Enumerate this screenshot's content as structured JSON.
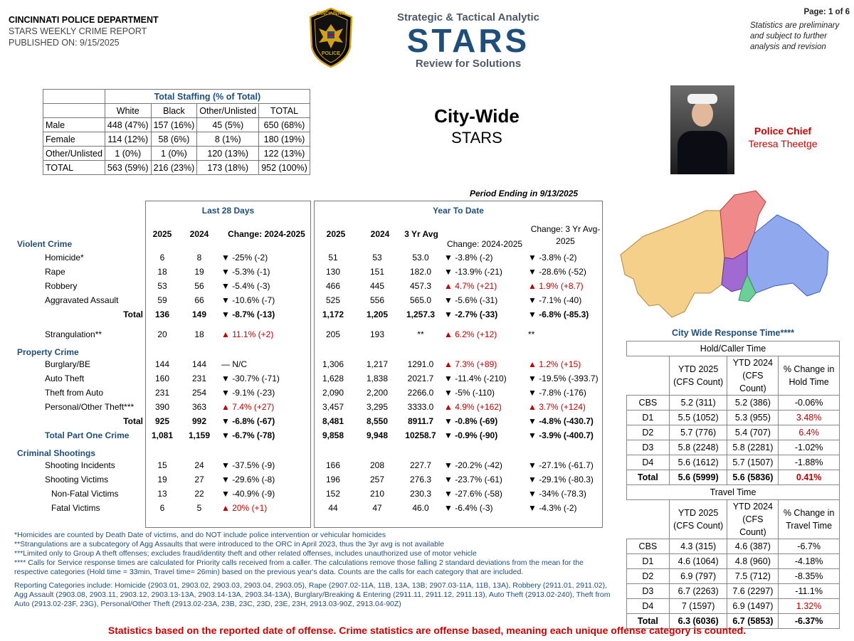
{
  "header": {
    "department": "CINCINNATI POLICE DEPARTMENT",
    "report": "STARS WEEKLY CRIME REPORT",
    "published": "PUBLISHED ON: 9/15/2025",
    "badge_text_top": "CINCINNATI",
    "badge_text_bottom": "POLICE",
    "stars_line1": "Strategic & Tactical Analytic",
    "stars_word": "STARS",
    "stars_line3": "Review for Solutions",
    "page": "Page: 1 of 6",
    "note": "Statistics are preliminary and subject to further analysis and revision"
  },
  "title": {
    "line1": "City-Wide",
    "line2": "STARS"
  },
  "chief": {
    "title": "Police Chief",
    "name": "Teresa Theetge"
  },
  "staffing": {
    "title": "Total Staffing (% of Total)",
    "columns": [
      "White",
      "Black",
      "Other/Unlisted",
      "TOTAL"
    ],
    "rows": [
      {
        "label": "Male",
        "cells": [
          "448 (47%)",
          "157 (16%)",
          "45 (5%)",
          "650 (68%)"
        ]
      },
      {
        "label": "Female",
        "cells": [
          "114 (12%)",
          "58 (6%)",
          "8 (1%)",
          "180 (19%)"
        ]
      },
      {
        "label": "Other/Unlisted",
        "cells": [
          "1 (0%)",
          "1 (0%)",
          "120 (13%)",
          "122 (13%)"
        ]
      },
      {
        "label": "TOTAL",
        "cells": [
          "563 (59%)",
          "216 (23%)",
          "173 (18%)",
          "952 (100%)"
        ]
      }
    ]
  },
  "period": "Period Ending in 9/13/2025",
  "crime": {
    "last28": "Last 28 Days",
    "ytd": "Year To Date",
    "cols_l28": [
      "2025",
      "2024",
      "Change: 2024-2025"
    ],
    "cols_ytd": [
      "2025",
      "2024",
      "3 Yr Avg",
      "Change: 2024-2025",
      "Change: 3 Yr Avg-2025"
    ],
    "violent_label": "Violent Crime",
    "violent": [
      {
        "label": "Homicide*",
        "a": "6",
        "b": "8",
        "c": "▼ -25% (-2)",
        "d": "51",
        "e": "53",
        "f": "53.0",
        "g": "▼ -3.8% (-2)",
        "h": "▼ -3.8% (-2)"
      },
      {
        "label": "Rape",
        "a": "18",
        "b": "19",
        "c": "▼ -5.3% (-1)",
        "d": "130",
        "e": "151",
        "f": "182.0",
        "g": "▼ -13.9% (-21)",
        "h": "▼ -28.6% (-52)"
      },
      {
        "label": "Robbery",
        "a": "53",
        "b": "56",
        "c": "▼ -5.4% (-3)",
        "d": "466",
        "e": "445",
        "f": "457.3",
        "g": "▲ 4.7% (+21)",
        "h": "▲ 1.9% (+8.7)"
      },
      {
        "label": "Aggravated Assault",
        "a": "59",
        "b": "66",
        "c": "▼ -10.6% (-7)",
        "d": "525",
        "e": "556",
        "f": "565.0",
        "g": "▼ -5.6% (-31)",
        "h": "▼ -7.1% (-40)"
      }
    ],
    "violent_total": {
      "label": "Total",
      "a": "136",
      "b": "149",
      "c": "▼ -8.7% (-13)",
      "d": "1,172",
      "e": "1,205",
      "f": "1,257.3",
      "g": "▼ -2.7% (-33)",
      "h": "▼ -6.8% (-85.3)"
    },
    "strangulation": {
      "label": "Strangulation**",
      "a": "20",
      "b": "18",
      "c": "▲ 11.1% (+2)",
      "d": "205",
      "e": "193",
      "f": "**",
      "g": "▲ 6.2% (+12)",
      "h": "**"
    },
    "property_label": "Property Crime",
    "property": [
      {
        "label": "Burglary/BE",
        "a": "144",
        "b": "144",
        "c": "— N/C",
        "d": "1,306",
        "e": "1,217",
        "f": "1291.0",
        "g": "▲ 7.3% (+89)",
        "h": "▲ 1.2% (+15)"
      },
      {
        "label": "Auto Theft",
        "a": "160",
        "b": "231",
        "c": "▼ -30.7% (-71)",
        "d": "1,628",
        "e": "1,838",
        "f": "2021.7",
        "g": "▼ -11.4% (-210)",
        "h": "▼ -19.5% (-393.7)"
      },
      {
        "label": "Theft from Auto",
        "a": "231",
        "b": "254",
        "c": "▼ -9.1% (-23)",
        "d": "2,090",
        "e": "2,200",
        "f": "2266.0",
        "g": "▼ -5% (-110)",
        "h": "▼ -7.8% (-176)"
      },
      {
        "label": "Personal/Other Theft***",
        "a": "390",
        "b": "363",
        "c": "▲ 7.4% (+27)",
        "d": "3,457",
        "e": "3,295",
        "f": "3333.0",
        "g": "▲ 4.9% (+162)",
        "h": "▲ 3.7% (+124)"
      }
    ],
    "property_total": {
      "label": "Total",
      "a": "925",
      "b": "992",
      "c": "▼ -6.8% (-67)",
      "d": "8,481",
      "e": "8,550",
      "f": "8911.7",
      "g": "▼ -0.8% (-69)",
      "h": "▼ -4.8% (-430.7)"
    },
    "part_one": {
      "label": "Total Part One Crime",
      "a": "1,081",
      "b": "1,159",
      "c": "▼ -6.7% (-78)",
      "d": "9,858",
      "e": "9,948",
      "f": "10258.7",
      "g": "▼ -0.9% (-90)",
      "h": "▼ -3.9% (-400.7)"
    },
    "shootings_label": "Criminal Shootings",
    "shootings": [
      {
        "label": "Shooting Incidents",
        "a": "15",
        "b": "24",
        "c": "▼ -37.5% (-9)",
        "d": "166",
        "e": "208",
        "f": "227.7",
        "g": "▼ -20.2% (-42)",
        "h": "▼ -27.1% (-61.7)"
      },
      {
        "label": "Shooting Victims",
        "a": "19",
        "b": "27",
        "c": "▼ -29.6% (-8)",
        "d": "196",
        "e": "257",
        "f": "276.3",
        "g": "▼ -23.7% (-61)",
        "h": "▼ -29.1% (-80.3)"
      },
      {
        "label": "Non-Fatal Victims",
        "a": "13",
        "b": "22",
        "c": "▼ -40.9% (-9)",
        "d": "152",
        "e": "210",
        "f": "230.3",
        "g": "▼ -27.6% (-58)",
        "h": "▼ -34% (-78.3)"
      },
      {
        "label": "Fatal Victims",
        "a": "6",
        "b": "5",
        "c": "▲ 20% (+1)",
        "d": "44",
        "e": "47",
        "f": "46.0",
        "g": "▼ -6.4% (-3)",
        "h": "▼ -4.3% (-2)"
      }
    ]
  },
  "response": {
    "title": "City Wide Response Time****",
    "hold_title": "Hold/Caller Time",
    "hold_cols": [
      "YTD 2025 (CFS Count)",
      "YTD 2024 (CFS Count)",
      "% Change in Hold Time"
    ],
    "hold_rows": [
      {
        "d": "CBS",
        "a": "5.2 (311)",
        "b": "5.2 (386)",
        "c": "-0.06%",
        "red": false
      },
      {
        "d": "D1",
        "a": "5.5 (1052)",
        "b": "5.3 (955)",
        "c": "3.48%",
        "red": true
      },
      {
        "d": "D2",
        "a": "5.7 (776)",
        "b": "5.4 (707)",
        "c": "6.4%",
        "red": true
      },
      {
        "d": "D3",
        "a": "5.8 (2248)",
        "b": "5.8 (2281)",
        "c": "-1.02%",
        "red": false
      },
      {
        "d": "D4",
        "a": "5.6 (1612)",
        "b": "5.7 (1507)",
        "c": "-1.88%",
        "red": false
      },
      {
        "d": "Total",
        "a": "5.6 (5999)",
        "b": "5.6 (5836)",
        "c": "0.41%",
        "red": true
      }
    ],
    "travel_title": "Travel Time",
    "travel_cols": [
      "YTD 2025 (CFS Count)",
      "YTD 2024 (CFS Count)",
      "% Change in Travel Time"
    ],
    "travel_rows": [
      {
        "d": "CBS",
        "a": "4.3 (315)",
        "b": "4.6 (387)",
        "c": "-6.7%",
        "red": false
      },
      {
        "d": "D1",
        "a": "4.6 (1064)",
        "b": "4.8 (960)",
        "c": "-4.18%",
        "red": false
      },
      {
        "d": "D2",
        "a": "6.9 (797)",
        "b": "7.5 (712)",
        "c": "-8.35%",
        "red": false
      },
      {
        "d": "D3",
        "a": "6.7 (2263)",
        "b": "7.6 (2297)",
        "c": "-11.1%",
        "red": false
      },
      {
        "d": "D4",
        "a": "7 (1597)",
        "b": "6.9 (1497)",
        "c": "1.32%",
        "red": true
      },
      {
        "d": "Total",
        "a": "6.3 (6036)",
        "b": "6.7 (5853)",
        "c": "-6.37%",
        "red": false
      }
    ]
  },
  "footnotes": [
    "*Homicides are counted by Death Date of victims, and do NOT include police intervention or vehicular homicides",
    "**Strangulations are a subcategory of Agg Assaults that were introduced to the ORC in April 2023, thus the 3yr avg is not available",
    "***Limited only to Group A theft offenses; excludes fraud/identity theft and other related offenses, includes unauthorized use of motor vehicle",
    "**** Calls for Service response times are calculated for Priority calls received from a caller. The calculations remove those falling 2 standard deviations from the mean for the respective categories (Hold time = 33min, Travel time= 26min) based on the previous year's data. Counts are the calls for each category that are included.",
    "Reporting Categories include: Homicide (2903.01, 2903.02, 2903.03, 2903.04, 2903.05), Rape (2907.02-11A, 11B, 13A, 13B; 2907.03-11A, 11B, 13A), Robbery (2911.01, 2911.02), Agg Assault (2903.08, 2903.11, 2903.12, 2903.13-13A, 2903.14-13A, 2903.34-13A), Burglary/Breaking & Entering (2911.11, 2911.12, 2911.13), Auto Theft (2913.02-240), Theft from Auto (2913.02-23F, 23G), Personal/Other Theft (2913.02-23A, 23B, 23C, 23D, 23E, 23H, 2913.03-90Z, 2913.04-90Z)"
  ],
  "bottom_note": "Statistics based on the reported date of offense. Crime statistics are offense based, meaning each unique offense category is counted.",
  "colors": {
    "navy": "#1f4e79",
    "red": "#c00000",
    "map_orange": "#f5d08a",
    "map_red": "#f08a8a",
    "map_blue": "#8fa8ee",
    "map_purple": "#a16ad0",
    "map_green": "#6ccf9a"
  }
}
